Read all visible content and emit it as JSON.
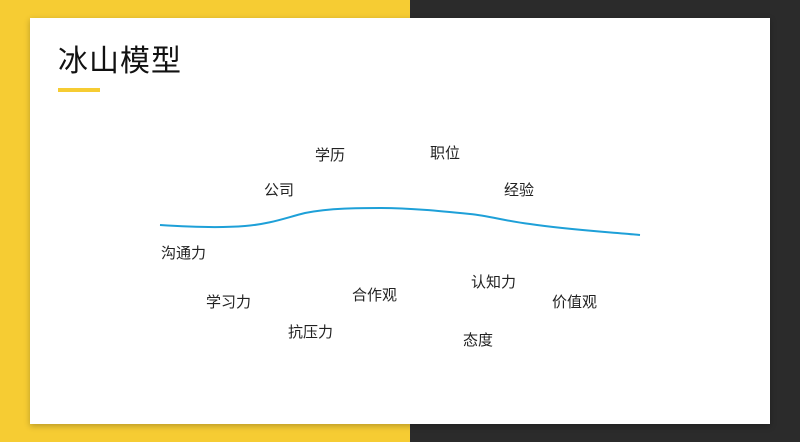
{
  "slide": {
    "title": "冰山模型",
    "accent_color": "#F6CC33",
    "dark_color": "#2B2B2B",
    "line_color": "#1EA0D8"
  },
  "above_water": {
    "education": "学历",
    "position": "职位",
    "company": "公司",
    "experience": "经验"
  },
  "below_water": {
    "communication": "沟通力",
    "learning": "学习力",
    "cooperation": "合作观",
    "cognition": "认知力",
    "values": "价值观",
    "pressure_resistance": "抗压力",
    "attitude": "态度"
  }
}
